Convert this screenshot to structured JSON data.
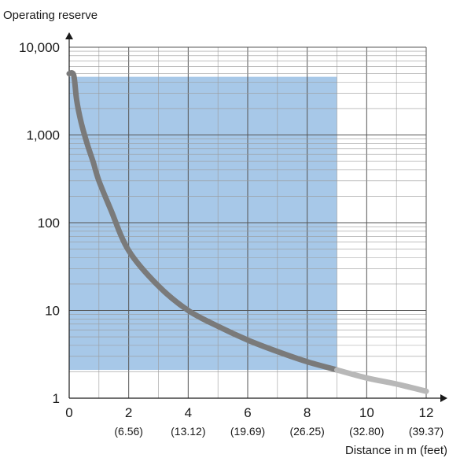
{
  "chart_data": {
    "type": "line",
    "ylabel": "Operating reserve",
    "xlabel": "Distance in m (feet)",
    "y_scale": "log",
    "xlim": [
      0,
      12
    ],
    "ylim": [
      1,
      10000
    ],
    "grid": true,
    "x_ticks": [
      {
        "value": 0,
        "label": "0",
        "sub": ""
      },
      {
        "value": 2,
        "label": "2",
        "sub": "(6.56)"
      },
      {
        "value": 4,
        "label": "4",
        "sub": "(13.12)"
      },
      {
        "value": 6,
        "label": "6",
        "sub": "(19.69)"
      },
      {
        "value": 8,
        "label": "8",
        "sub": "(26.25)"
      },
      {
        "value": 10,
        "label": "10",
        "sub": "(32.80)"
      },
      {
        "value": 12,
        "label": "12",
        "sub": "(39.37)"
      }
    ],
    "y_ticks": [
      {
        "value": 1,
        "label": "1"
      },
      {
        "value": 10,
        "label": "10"
      },
      {
        "value": 100,
        "label": "100"
      },
      {
        "value": 1000,
        "label": "1,000"
      },
      {
        "value": 10000,
        "label": "10,000"
      }
    ],
    "shaded_region": {
      "x": [
        0,
        9
      ],
      "y": [
        2.1,
        4600
      ],
      "color": "#a7c8e8"
    },
    "series": [
      {
        "color": "#7a7a7a",
        "points": [
          [
            0.0,
            5000
          ],
          [
            0.15,
            4800
          ],
          [
            0.25,
            2500
          ],
          [
            0.4,
            1400
          ],
          [
            0.6,
            800
          ],
          [
            0.8,
            500
          ],
          [
            1.0,
            300
          ],
          [
            1.4,
            140
          ],
          [
            2.0,
            48
          ],
          [
            3.0,
            19
          ],
          [
            4.0,
            10
          ],
          [
            5.0,
            6.6
          ],
          [
            6.0,
            4.6
          ],
          [
            7.0,
            3.4
          ],
          [
            8.0,
            2.6
          ],
          [
            9.0,
            2.1
          ]
        ]
      },
      {
        "color": "#b8b8b8",
        "points": [
          [
            9.0,
            2.1
          ],
          [
            10.0,
            1.7
          ],
          [
            11.0,
            1.45
          ],
          [
            12.0,
            1.2
          ]
        ]
      }
    ]
  }
}
